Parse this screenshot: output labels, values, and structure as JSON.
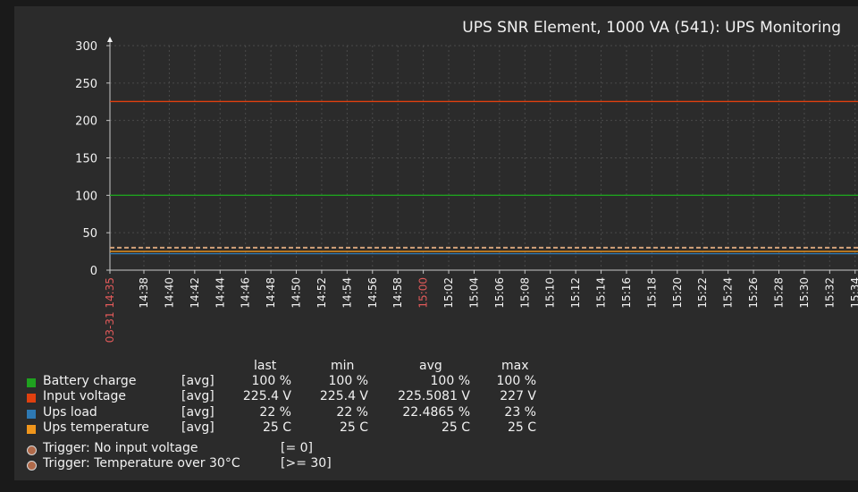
{
  "chart_data": {
    "type": "line",
    "title": "UPS SNR Element, 1000 VA (541): UPS Monitoring",
    "xlabel": "",
    "ylabel": "",
    "ylim": [
      0,
      300
    ],
    "y_ticks": [
      0,
      50,
      100,
      150,
      200,
      250,
      300
    ],
    "x_ticks": [
      {
        "label": "03-31 14:35",
        "highlight": true
      },
      {
        "label": "14:38",
        "highlight": false
      },
      {
        "label": "14:40",
        "highlight": false
      },
      {
        "label": "14:42",
        "highlight": false
      },
      {
        "label": "14:44",
        "highlight": false
      },
      {
        "label": "14:46",
        "highlight": false
      },
      {
        "label": "14:48",
        "highlight": false
      },
      {
        "label": "14:50",
        "highlight": false
      },
      {
        "label": "14:52",
        "highlight": false
      },
      {
        "label": "14:54",
        "highlight": false
      },
      {
        "label": "14:56",
        "highlight": false
      },
      {
        "label": "14:58",
        "highlight": false
      },
      {
        "label": "15:00",
        "highlight": true
      },
      {
        "label": "15:02",
        "highlight": false
      },
      {
        "label": "15:04",
        "highlight": false
      },
      {
        "label": "15:06",
        "highlight": false
      },
      {
        "label": "15:08",
        "highlight": false
      },
      {
        "label": "15:10",
        "highlight": false
      },
      {
        "label": "15:12",
        "highlight": false
      },
      {
        "label": "15:14",
        "highlight": false
      },
      {
        "label": "15:16",
        "highlight": false
      },
      {
        "label": "15:18",
        "highlight": false
      },
      {
        "label": "15:20",
        "highlight": false
      },
      {
        "label": "15:22",
        "highlight": false
      },
      {
        "label": "15:24",
        "highlight": false
      },
      {
        "label": "15:26",
        "highlight": false
      },
      {
        "label": "15:28",
        "highlight": false
      },
      {
        "label": "15:30",
        "highlight": false
      },
      {
        "label": "15:32",
        "highlight": false
      },
      {
        "label": "15:34",
        "highlight": false
      }
    ],
    "grid": true,
    "legend_position": "bottom-left",
    "series": [
      {
        "name": "Battery charge",
        "func": "[avg]",
        "color": "#1fa11f",
        "value": 100,
        "last": "100 %",
        "min": "100 %",
        "avg": "100 %",
        "max": "100 %"
      },
      {
        "name": "Input voltage",
        "func": "[avg]",
        "color": "#e0400f",
        "value": 225.4,
        "last": "225.4 V",
        "min": "225.4 V",
        "avg": "225.5081 V",
        "max": "227 V"
      },
      {
        "name": "Ups load",
        "func": "[avg]",
        "color": "#2e79b3",
        "value": 22,
        "last": "22 %",
        "min": "22 %",
        "avg": "22.4865 %",
        "max": "23 %"
      },
      {
        "name": "Ups temperature",
        "func": "[avg]",
        "color": "#f0961c",
        "value": 25,
        "last": "25 C",
        "min": "25 C",
        "avg": "25 C",
        "max": "25 C"
      }
    ],
    "triggers": [
      {
        "name": "Trigger: No input voltage",
        "condition": "[= 0]",
        "value": 0
      },
      {
        "name": "Trigger: Temperature over 30°C",
        "condition": "[>= 30]",
        "value": 30
      }
    ],
    "columns": {
      "last": "last",
      "min": "min",
      "avg": "avg",
      "max": "max"
    }
  },
  "colors": {
    "background": "#2b2b2b",
    "grid": "#4a4a4a",
    "axis": "#c8c8c8",
    "text": "#f2f2f2",
    "highlight_tick": "#e05a5a",
    "trigger": "#d4a27a"
  }
}
